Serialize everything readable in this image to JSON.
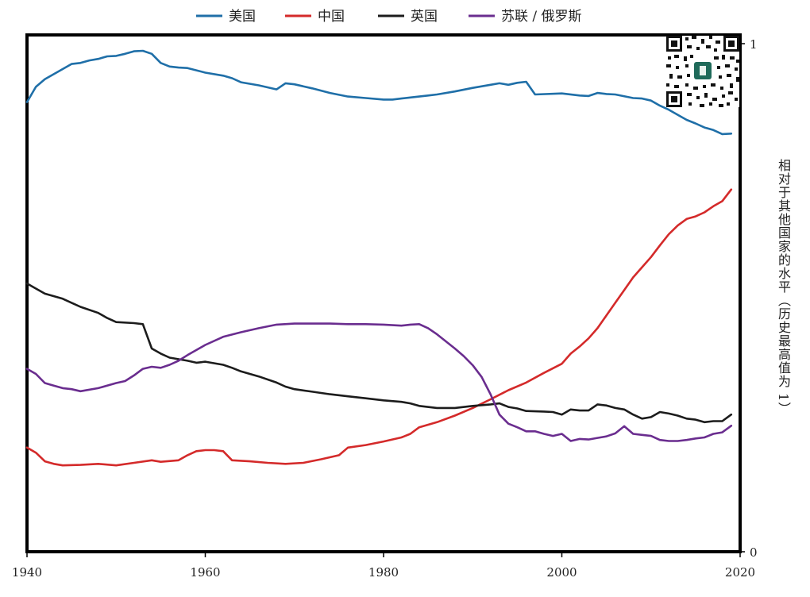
{
  "chart_data": {
    "type": "line",
    "title": "",
    "xlabel": "",
    "ylabel": "相对于其他国家的水平（历史最高值为 1）",
    "xlim": [
      1940,
      2020
    ],
    "ylim": [
      0,
      1
    ],
    "x_ticks": [
      "1940",
      "1960",
      "1980",
      "2000",
      "2020"
    ],
    "y_ticks": [
      "0",
      "1"
    ],
    "grid": false,
    "legend_position": "top",
    "series": [
      {
        "name": "美国",
        "color": "#1f6fa8",
        "points": [
          [
            1940,
            0.885
          ],
          [
            1941,
            0.915
          ],
          [
            1942,
            0.93
          ],
          [
            1944,
            0.95
          ],
          [
            1945,
            0.96
          ],
          [
            1946,
            0.962
          ],
          [
            1947,
            0.967
          ],
          [
            1948,
            0.97
          ],
          [
            1949,
            0.975
          ],
          [
            1950,
            0.976
          ],
          [
            1951,
            0.98
          ],
          [
            1952,
            0.985
          ],
          [
            1953,
            0.986
          ],
          [
            1954,
            0.98
          ],
          [
            1955,
            0.962
          ],
          [
            1956,
            0.955
          ],
          [
            1957,
            0.953
          ],
          [
            1958,
            0.952
          ],
          [
            1960,
            0.943
          ],
          [
            1962,
            0.937
          ],
          [
            1963,
            0.932
          ],
          [
            1964,
            0.924
          ],
          [
            1966,
            0.918
          ],
          [
            1968,
            0.91
          ],
          [
            1969,
            0.922
          ],
          [
            1970,
            0.92
          ],
          [
            1972,
            0.912
          ],
          [
            1974,
            0.903
          ],
          [
            1976,
            0.896
          ],
          [
            1978,
            0.893
          ],
          [
            1980,
            0.89
          ],
          [
            1981,
            0.89
          ],
          [
            1982,
            0.892
          ],
          [
            1983,
            0.894
          ],
          [
            1984,
            0.896
          ],
          [
            1985,
            0.898
          ],
          [
            1986,
            0.9
          ],
          [
            1988,
            0.906
          ],
          [
            1990,
            0.913
          ],
          [
            1992,
            0.919
          ],
          [
            1993,
            0.922
          ],
          [
            1994,
            0.919
          ],
          [
            1995,
            0.923
          ],
          [
            1996,
            0.925
          ],
          [
            1997,
            0.9
          ],
          [
            2000,
            0.902
          ],
          [
            2002,
            0.898
          ],
          [
            2003,
            0.897
          ],
          [
            2004,
            0.903
          ],
          [
            2005,
            0.901
          ],
          [
            2006,
            0.9
          ],
          [
            2008,
            0.893
          ],
          [
            2009,
            0.892
          ],
          [
            2010,
            0.888
          ],
          [
            2011,
            0.878
          ],
          [
            2012,
            0.87
          ],
          [
            2013,
            0.86
          ],
          [
            2014,
            0.85
          ],
          [
            2015,
            0.843
          ],
          [
            2016,
            0.835
          ],
          [
            2017,
            0.83
          ],
          [
            2018,
            0.822
          ],
          [
            2019,
            0.823
          ]
        ]
      },
      {
        "name": "中国",
        "color": "#d42a2a",
        "points": [
          [
            1940,
            0.205
          ],
          [
            1941,
            0.195
          ],
          [
            1942,
            0.178
          ],
          [
            1943,
            0.173
          ],
          [
            1944,
            0.17
          ],
          [
            1946,
            0.171
          ],
          [
            1948,
            0.173
          ],
          [
            1950,
            0.17
          ],
          [
            1952,
            0.175
          ],
          [
            1954,
            0.18
          ],
          [
            1955,
            0.177
          ],
          [
            1957,
            0.18
          ],
          [
            1958,
            0.19
          ],
          [
            1959,
            0.198
          ],
          [
            1960,
            0.2
          ],
          [
            1961,
            0.2
          ],
          [
            1962,
            0.198
          ],
          [
            1963,
            0.18
          ],
          [
            1965,
            0.178
          ],
          [
            1967,
            0.175
          ],
          [
            1969,
            0.173
          ],
          [
            1971,
            0.175
          ],
          [
            1973,
            0.182
          ],
          [
            1975,
            0.19
          ],
          [
            1976,
            0.205
          ],
          [
            1978,
            0.21
          ],
          [
            1980,
            0.217
          ],
          [
            1982,
            0.225
          ],
          [
            1983,
            0.232
          ],
          [
            1984,
            0.245
          ],
          [
            1986,
            0.255
          ],
          [
            1988,
            0.268
          ],
          [
            1990,
            0.283
          ],
          [
            1992,
            0.3
          ],
          [
            1994,
            0.318
          ],
          [
            1996,
            0.333
          ],
          [
            1998,
            0.352
          ],
          [
            2000,
            0.37
          ],
          [
            2001,
            0.39
          ],
          [
            2002,
            0.404
          ],
          [
            2003,
            0.42
          ],
          [
            2004,
            0.44
          ],
          [
            2005,
            0.465
          ],
          [
            2006,
            0.49
          ],
          [
            2007,
            0.515
          ],
          [
            2008,
            0.54
          ],
          [
            2009,
            0.56
          ],
          [
            2010,
            0.58
          ],
          [
            2011,
            0.603
          ],
          [
            2012,
            0.625
          ],
          [
            2013,
            0.642
          ],
          [
            2014,
            0.655
          ],
          [
            2015,
            0.66
          ],
          [
            2016,
            0.668
          ],
          [
            2017,
            0.68
          ],
          [
            2018,
            0.69
          ],
          [
            2019,
            0.713
          ]
        ]
      },
      {
        "name": "英国",
        "color": "#1c1c1c",
        "points": [
          [
            1940,
            0.528
          ],
          [
            1941,
            0.518
          ],
          [
            1942,
            0.508
          ],
          [
            1944,
            0.498
          ],
          [
            1945,
            0.49
          ],
          [
            1946,
            0.482
          ],
          [
            1948,
            0.47
          ],
          [
            1949,
            0.46
          ],
          [
            1950,
            0.452
          ],
          [
            1952,
            0.45
          ],
          [
            1953,
            0.448
          ],
          [
            1954,
            0.4
          ],
          [
            1955,
            0.39
          ],
          [
            1956,
            0.382
          ],
          [
            1958,
            0.376
          ],
          [
            1959,
            0.372
          ],
          [
            1960,
            0.374
          ],
          [
            1962,
            0.368
          ],
          [
            1963,
            0.362
          ],
          [
            1964,
            0.355
          ],
          [
            1966,
            0.345
          ],
          [
            1968,
            0.333
          ],
          [
            1969,
            0.325
          ],
          [
            1970,
            0.32
          ],
          [
            1972,
            0.315
          ],
          [
            1974,
            0.31
          ],
          [
            1976,
            0.306
          ],
          [
            1978,
            0.302
          ],
          [
            1980,
            0.298
          ],
          [
            1982,
            0.295
          ],
          [
            1983,
            0.292
          ],
          [
            1984,
            0.287
          ],
          [
            1986,
            0.283
          ],
          [
            1988,
            0.283
          ],
          [
            1990,
            0.287
          ],
          [
            1992,
            0.29
          ],
          [
            1993,
            0.292
          ],
          [
            1994,
            0.285
          ],
          [
            1995,
            0.282
          ],
          [
            1996,
            0.277
          ],
          [
            1998,
            0.276
          ],
          [
            1999,
            0.275
          ],
          [
            2000,
            0.27
          ],
          [
            2001,
            0.28
          ],
          [
            2002,
            0.278
          ],
          [
            2003,
            0.278
          ],
          [
            2004,
            0.29
          ],
          [
            2005,
            0.288
          ],
          [
            2006,
            0.283
          ],
          [
            2007,
            0.28
          ],
          [
            2008,
            0.27
          ],
          [
            2009,
            0.262
          ],
          [
            2010,
            0.265
          ],
          [
            2011,
            0.275
          ],
          [
            2012,
            0.272
          ],
          [
            2013,
            0.268
          ],
          [
            2014,
            0.262
          ],
          [
            2015,
            0.26
          ],
          [
            2016,
            0.255
          ],
          [
            2017,
            0.257
          ],
          [
            2018,
            0.257
          ],
          [
            2019,
            0.27
          ]
        ]
      },
      {
        "name": "苏联 / 俄罗斯",
        "color": "#6a2d8f",
        "points": [
          [
            1940,
            0.36
          ],
          [
            1941,
            0.35
          ],
          [
            1942,
            0.332
          ],
          [
            1943,
            0.327
          ],
          [
            1944,
            0.322
          ],
          [
            1945,
            0.32
          ],
          [
            1946,
            0.316
          ],
          [
            1948,
            0.322
          ],
          [
            1950,
            0.332
          ],
          [
            1951,
            0.336
          ],
          [
            1952,
            0.347
          ],
          [
            1953,
            0.36
          ],
          [
            1954,
            0.364
          ],
          [
            1955,
            0.362
          ],
          [
            1956,
            0.368
          ],
          [
            1957,
            0.376
          ],
          [
            1958,
            0.387
          ],
          [
            1960,
            0.407
          ],
          [
            1962,
            0.423
          ],
          [
            1964,
            0.432
          ],
          [
            1966,
            0.44
          ],
          [
            1968,
            0.447
          ],
          [
            1970,
            0.449
          ],
          [
            1972,
            0.449
          ],
          [
            1974,
            0.449
          ],
          [
            1976,
            0.448
          ],
          [
            1978,
            0.448
          ],
          [
            1980,
            0.447
          ],
          [
            1982,
            0.445
          ],
          [
            1983,
            0.447
          ],
          [
            1984,
            0.448
          ],
          [
            1985,
            0.44
          ],
          [
            1986,
            0.428
          ],
          [
            1988,
            0.4
          ],
          [
            1989,
            0.385
          ],
          [
            1990,
            0.367
          ],
          [
            1991,
            0.344
          ],
          [
            1992,
            0.31
          ],
          [
            1993,
            0.27
          ],
          [
            1994,
            0.252
          ],
          [
            1995,
            0.245
          ],
          [
            1996,
            0.237
          ],
          [
            1997,
            0.237
          ],
          [
            1998,
            0.232
          ],
          [
            1999,
            0.228
          ],
          [
            2000,
            0.232
          ],
          [
            2001,
            0.218
          ],
          [
            2002,
            0.222
          ],
          [
            2003,
            0.221
          ],
          [
            2004,
            0.224
          ],
          [
            2005,
            0.227
          ],
          [
            2006,
            0.233
          ],
          [
            2007,
            0.247
          ],
          [
            2008,
            0.232
          ],
          [
            2009,
            0.23
          ],
          [
            2010,
            0.228
          ],
          [
            2011,
            0.22
          ],
          [
            2012,
            0.218
          ],
          [
            2013,
            0.218
          ],
          [
            2014,
            0.22
          ],
          [
            2015,
            0.223
          ],
          [
            2016,
            0.225
          ],
          [
            2017,
            0.232
          ],
          [
            2018,
            0.235
          ],
          [
            2019,
            0.248
          ]
        ]
      }
    ]
  },
  "icons": {
    "qr": "qr-code-icon"
  }
}
